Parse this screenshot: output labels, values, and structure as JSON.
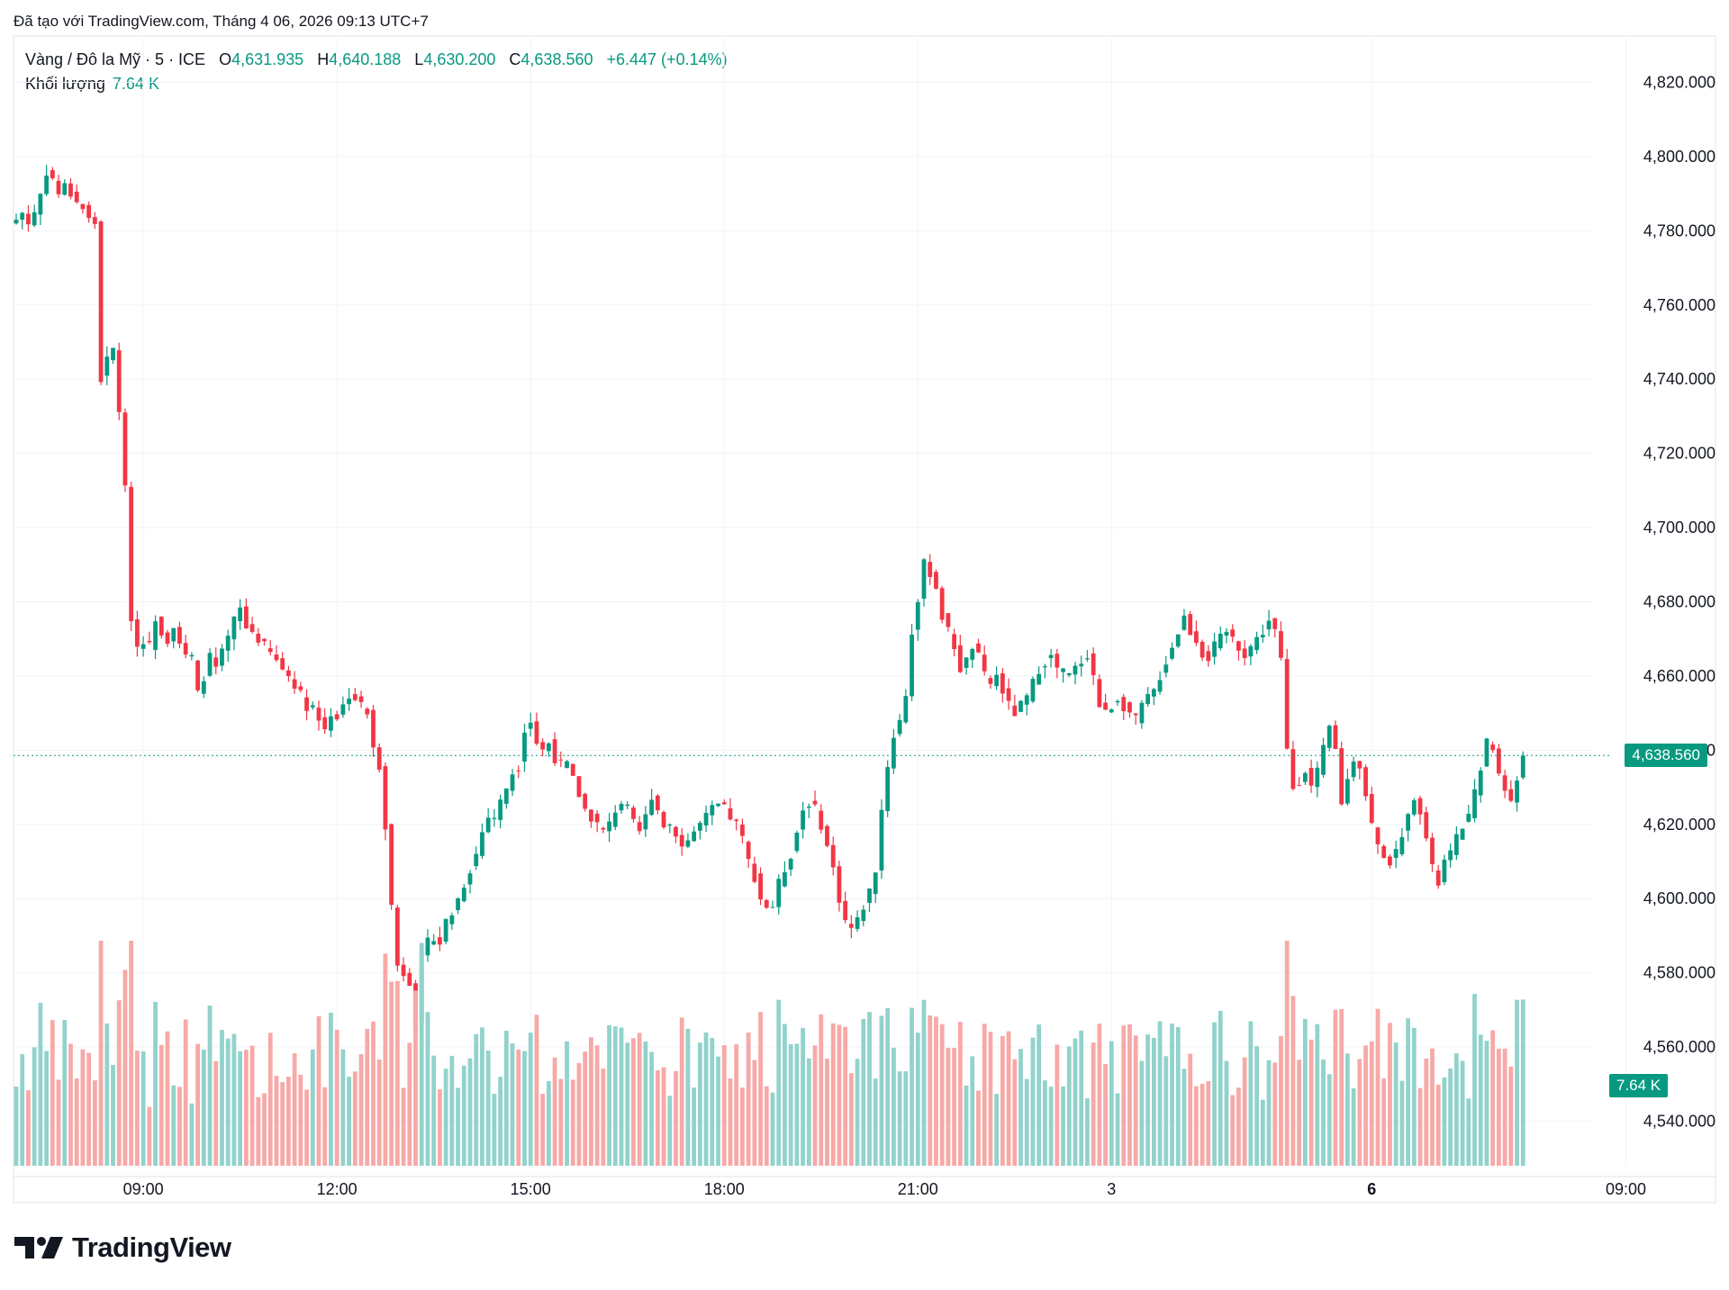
{
  "header": {
    "created_text": "Đã tạo với TradingView.com, Tháng 4 06, 2026 09:13 UTC+7"
  },
  "legend": {
    "symbol": "Vàng / Đô la Mỹ · 5 · ICE",
    "open_label": "O",
    "open": "4,631.935",
    "high_label": "H",
    "high": "4,640.188",
    "low_label": "L",
    "low": "4,630.200",
    "close_label": "C",
    "close": "4,638.560",
    "change": "+6.447 (+0.14%)",
    "volume_label": "Khối lượng",
    "volume": "7.64 K"
  },
  "price_tag": "4,638.560",
  "volume_tag": "7.64 K",
  "brand": {
    "name": "TradingView"
  },
  "colors": {
    "up": "#089981",
    "down": "#F23645",
    "up_volume": "#92D2CC",
    "down_volume": "#F7A9A7",
    "grid": "#F0F3FA"
  },
  "chart_data": {
    "type": "candlestick",
    "y_ticks": [
      "4,820.000",
      "4,800.000",
      "4,780.000",
      "4,760.000",
      "4,740.000",
      "4,720.000",
      "4,700.000",
      "4,680.000",
      "4,660.000",
      "4,640.000",
      "4,620.000",
      "4,600.000",
      "4,580.000",
      "4,560.000",
      "4,540.000"
    ],
    "x_ticks": [
      {
        "label": "09:00",
        "bar": 21,
        "bold": false
      },
      {
        "label": "12:00",
        "bar": 53,
        "bold": false
      },
      {
        "label": "15:00",
        "bar": 85,
        "bold": false
      },
      {
        "label": "18:00",
        "bar": 117,
        "bold": false
      },
      {
        "label": "21:00",
        "bar": 149,
        "bold": false
      },
      {
        "label": "3",
        "bar": 181,
        "bold": false
      },
      {
        "label": "6",
        "bar": 224,
        "bold": true
      },
      {
        "label": "09:00",
        "bar": 266,
        "bold": false
      }
    ],
    "ylim": [
      4528,
      4832
    ],
    "last_price": 4638.56,
    "series": [
      {
        "name": "Vàng / Đô la Mỹ",
        "anchors": [
          [
            0,
            4783
          ],
          [
            1,
            4785
          ],
          [
            2,
            4782
          ],
          [
            3,
            4785
          ],
          [
            4,
            4790
          ],
          [
            5,
            4796
          ],
          [
            6,
            4794
          ],
          [
            7,
            4790
          ],
          [
            8,
            4792
          ],
          [
            9,
            4790
          ],
          [
            10,
            4788
          ],
          [
            11,
            4786
          ],
          [
            12,
            4783
          ],
          [
            13,
            4782
          ],
          [
            14,
            4740
          ],
          [
            15,
            4745
          ],
          [
            16,
            4748
          ],
          [
            17,
            4732
          ],
          [
            18,
            4710
          ],
          [
            19,
            4676
          ],
          [
            20,
            4668
          ],
          [
            21,
            4670
          ],
          [
            22,
            4668
          ],
          [
            23,
            4676
          ],
          [
            24,
            4672
          ],
          [
            25,
            4670
          ],
          [
            26,
            4674
          ],
          [
            27,
            4669
          ],
          [
            28,
            4665
          ],
          [
            29,
            4665
          ],
          [
            30,
            4655
          ],
          [
            31,
            4660
          ],
          [
            32,
            4665
          ],
          [
            33,
            4662
          ],
          [
            34,
            4666
          ],
          [
            35,
            4670
          ],
          [
            36,
            4675
          ],
          [
            37,
            4678
          ],
          [
            38,
            4673
          ],
          [
            39,
            4672
          ],
          [
            40,
            4670
          ],
          [
            41,
            4668
          ],
          [
            42,
            4666
          ],
          [
            43,
            4664
          ],
          [
            44,
            4662
          ],
          [
            45,
            4660
          ],
          [
            46,
            4658
          ],
          [
            47,
            4655
          ],
          [
            48,
            4652
          ],
          [
            49,
            4652
          ],
          [
            50,
            4648
          ],
          [
            51,
            4646
          ],
          [
            52,
            4650
          ],
          [
            53,
            4649
          ],
          [
            54,
            4652
          ],
          [
            55,
            4655
          ],
          [
            56,
            4654
          ],
          [
            57,
            4652
          ],
          [
            58,
            4650
          ],
          [
            59,
            4640
          ],
          [
            60,
            4636
          ],
          [
            61,
            4620
          ],
          [
            62,
            4598
          ],
          [
            63,
            4582
          ],
          [
            64,
            4580
          ],
          [
            65,
            4578
          ],
          [
            66,
            4566
          ],
          [
            67,
            4584
          ],
          [
            68,
            4588
          ],
          [
            69,
            4590
          ],
          [
            70,
            4588
          ],
          [
            71,
            4594
          ],
          [
            72,
            4596
          ],
          [
            73,
            4600
          ],
          [
            74,
            4604
          ],
          [
            75,
            4608
          ],
          [
            76,
            4612
          ],
          [
            77,
            4618
          ],
          [
            78,
            4622
          ],
          [
            79,
            4622
          ],
          [
            80,
            4626
          ],
          [
            81,
            4630
          ],
          [
            82,
            4634
          ],
          [
            83,
            4636
          ],
          [
            84,
            4646
          ],
          [
            85,
            4648
          ],
          [
            86,
            4642
          ],
          [
            87,
            4640
          ],
          [
            88,
            4642
          ],
          [
            89,
            4638
          ],
          [
            90,
            4636
          ],
          [
            91,
            4636
          ],
          [
            92,
            4632
          ],
          [
            93,
            4628
          ],
          [
            94,
            4624
          ],
          [
            95,
            4622
          ],
          [
            96,
            4620
          ],
          [
            97,
            4618
          ],
          [
            98,
            4620
          ],
          [
            99,
            4624
          ],
          [
            100,
            4626
          ],
          [
            101,
            4624
          ],
          [
            102,
            4620
          ],
          [
            103,
            4618
          ],
          [
            104,
            4622
          ],
          [
            105,
            4628
          ],
          [
            106,
            4624
          ],
          [
            107,
            4620
          ],
          [
            108,
            4620
          ],
          [
            109,
            4618
          ],
          [
            110,
            4614
          ],
          [
            111,
            4616
          ],
          [
            112,
            4618
          ],
          [
            113,
            4620
          ],
          [
            114,
            4622
          ],
          [
            115,
            4624
          ],
          [
            116,
            4625
          ],
          [
            117,
            4624
          ],
          [
            118,
            4622
          ],
          [
            119,
            4620
          ],
          [
            120,
            4616
          ],
          [
            121,
            4610
          ],
          [
            122,
            4606
          ],
          [
            123,
            4600
          ],
          [
            124,
            4598
          ],
          [
            125,
            4598
          ],
          [
            126,
            4604
          ],
          [
            127,
            4608
          ],
          [
            128,
            4612
          ],
          [
            129,
            4618
          ],
          [
            130,
            4624
          ],
          [
            131,
            4626
          ],
          [
            132,
            4624
          ],
          [
            133,
            4620
          ],
          [
            134,
            4614
          ],
          [
            135,
            4608
          ],
          [
            136,
            4600
          ],
          [
            137,
            4594
          ],
          [
            138,
            4592
          ],
          [
            139,
            4594
          ],
          [
            140,
            4598
          ],
          [
            141,
            4602
          ],
          [
            142,
            4608
          ],
          [
            143,
            4624
          ],
          [
            144,
            4636
          ],
          [
            145,
            4644
          ],
          [
            146,
            4648
          ],
          [
            147,
            4655
          ],
          [
            148,
            4672
          ],
          [
            149,
            4680
          ],
          [
            150,
            4690
          ],
          [
            151,
            4688
          ],
          [
            152,
            4684
          ],
          [
            153,
            4676
          ],
          [
            154,
            4672
          ],
          [
            155,
            4668
          ],
          [
            156,
            4662
          ],
          [
            157,
            4664
          ],
          [
            158,
            4668
          ],
          [
            159,
            4665
          ],
          [
            160,
            4660
          ],
          [
            161,
            4658
          ],
          [
            162,
            4660
          ],
          [
            163,
            4656
          ],
          [
            164,
            4652
          ],
          [
            165,
            4650
          ],
          [
            166,
            4652
          ],
          [
            167,
            4654
          ],
          [
            168,
            4658
          ],
          [
            169,
            4662
          ],
          [
            170,
            4664
          ],
          [
            171,
            4665
          ],
          [
            172,
            4662
          ],
          [
            173,
            4661
          ],
          [
            174,
            4660
          ],
          [
            175,
            4662
          ],
          [
            176,
            4664
          ],
          [
            177,
            4666
          ],
          [
            178,
            4660
          ],
          [
            179,
            4652
          ],
          [
            180,
            4650
          ],
          [
            181,
            4652
          ],
          [
            182,
            4654
          ],
          [
            183,
            4652
          ],
          [
            184,
            4650
          ],
          [
            185,
            4648
          ],
          [
            186,
            4652
          ],
          [
            187,
            4654
          ],
          [
            188,
            4656
          ],
          [
            189,
            4660
          ],
          [
            190,
            4664
          ],
          [
            191,
            4668
          ],
          [
            192,
            4672
          ],
          [
            193,
            4676
          ],
          [
            194,
            4672
          ],
          [
            195,
            4670
          ],
          [
            196,
            4666
          ],
          [
            197,
            4665
          ],
          [
            198,
            4668
          ],
          [
            199,
            4670
          ],
          [
            200,
            4672
          ],
          [
            201,
            4670
          ],
          [
            202,
            4668
          ],
          [
            203,
            4666
          ],
          [
            204,
            4668
          ],
          [
            205,
            4670
          ],
          [
            206,
            4672
          ],
          [
            207,
            4675
          ],
          [
            208,
            4672
          ],
          [
            209,
            4664
          ],
          [
            210,
            4640
          ],
          [
            211,
            4630
          ],
          [
            212,
            4632
          ],
          [
            213,
            4635
          ],
          [
            214,
            4630
          ],
          [
            215,
            4634
          ],
          [
            216,
            4640
          ],
          [
            217,
            4646
          ],
          [
            218,
            4640
          ],
          [
            219,
            4626
          ],
          [
            220,
            4632
          ],
          [
            221,
            4638
          ],
          [
            222,
            4636
          ],
          [
            223,
            4628
          ],
          [
            224,
            4620
          ],
          [
            225,
            4614
          ],
          [
            226,
            4612
          ],
          [
            227,
            4610
          ],
          [
            228,
            4612
          ],
          [
            229,
            4618
          ],
          [
            230,
            4622
          ],
          [
            231,
            4628
          ],
          [
            232,
            4624
          ],
          [
            233,
            4616
          ],
          [
            234,
            4608
          ],
          [
            235,
            4604
          ],
          [
            236,
            4610
          ],
          [
            237,
            4612
          ],
          [
            238,
            4616
          ],
          [
            239,
            4620
          ],
          [
            240,
            4622
          ],
          [
            241,
            4628
          ],
          [
            242,
            4636
          ],
          [
            243,
            4642
          ],
          [
            244,
            4640
          ],
          [
            245,
            4634
          ],
          [
            246,
            4630
          ],
          [
            247,
            4626
          ],
          [
            248,
            4632
          ],
          [
            249,
            4638
          ]
        ]
      }
    ]
  }
}
